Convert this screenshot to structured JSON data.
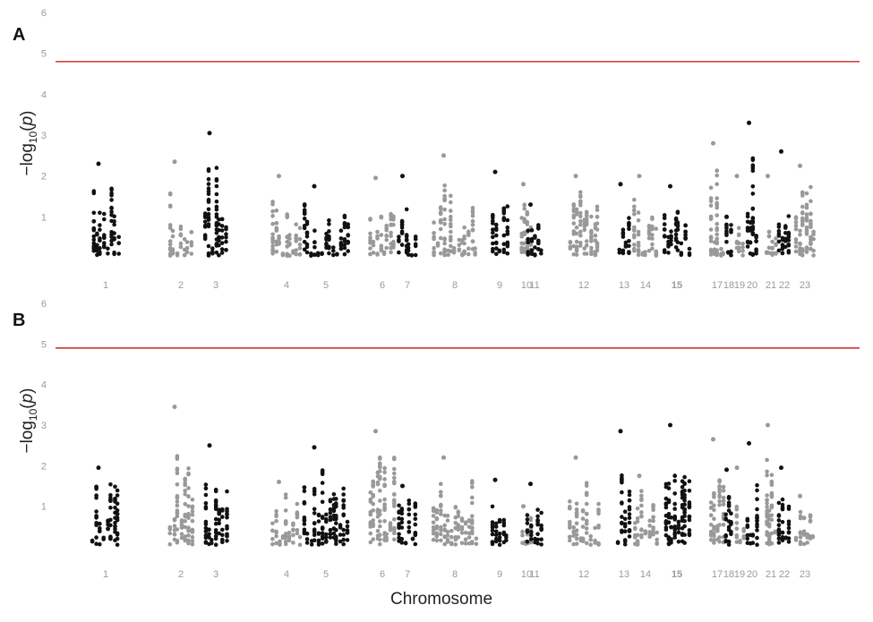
{
  "chart_data": [
    {
      "type": "scatter",
      "panel_label": "A",
      "ylabel_parts": [
        "−log",
        "10",
        "(",
        "p",
        ")"
      ],
      "xlabel": "",
      "ylim": [
        0,
        6
      ],
      "yticks": [
        1,
        2,
        3,
        4,
        5,
        6
      ],
      "threshold": 4.8,
      "threshold_color": "#cc2222",
      "series_colors": [
        "#111111",
        "#999999"
      ],
      "chromosome_labels": [
        "1",
        "2",
        "3",
        "4",
        "5",
        "6",
        "7",
        "8",
        "9",
        "10",
        "11",
        "12",
        "13",
        "14",
        "15",
        "17",
        "18",
        "19",
        "20",
        "21",
        "22",
        "23"
      ],
      "peaks": [
        {
          "chr": "1",
          "y": 2.3
        },
        {
          "chr": "2",
          "y": 2.35
        },
        {
          "chr": "3",
          "y": 3.05
        },
        {
          "chr": "4",
          "y": 2.0
        },
        {
          "chr": "5",
          "y": 1.75
        },
        {
          "chr": "6",
          "y": 1.95
        },
        {
          "chr": "7",
          "y": 2.0
        },
        {
          "chr": "8",
          "y": 2.5
        },
        {
          "chr": "9",
          "y": 2.1
        },
        {
          "chr": "10",
          "y": 1.8
        },
        {
          "chr": "11",
          "y": 1.3
        },
        {
          "chr": "12",
          "y": 2.0
        },
        {
          "chr": "13",
          "y": 1.8
        },
        {
          "chr": "14",
          "y": 2.0
        },
        {
          "chr": "15",
          "y": 1.75
        },
        {
          "chr": "17",
          "y": 2.8
        },
        {
          "chr": "18",
          "y": 1.0
        },
        {
          "chr": "19",
          "y": 2.0
        },
        {
          "chr": "20",
          "y": 3.3
        },
        {
          "chr": "21",
          "y": 2.0
        },
        {
          "chr": "22",
          "y": 2.6
        },
        {
          "chr": "23",
          "y": 2.25
        }
      ]
    },
    {
      "type": "scatter",
      "panel_label": "B",
      "ylabel_parts": [
        "−log",
        "10",
        "(",
        "p",
        ")"
      ],
      "xlabel": "Chromosome",
      "ylim": [
        0,
        6
      ],
      "yticks": [
        1,
        2,
        3,
        4,
        5,
        6
      ],
      "threshold": 4.9,
      "threshold_color": "#cc2222",
      "series_colors": [
        "#111111",
        "#999999"
      ],
      "chromosome_labels": [
        "1",
        "2",
        "3",
        "4",
        "5",
        "6",
        "7",
        "8",
        "9",
        "10",
        "11",
        "12",
        "13",
        "14",
        "15",
        "17",
        "18",
        "19",
        "20",
        "21",
        "22",
        "23"
      ],
      "peaks": [
        {
          "chr": "1",
          "y": 1.95
        },
        {
          "chr": "2",
          "y": 3.45
        },
        {
          "chr": "3",
          "y": 2.5
        },
        {
          "chr": "4",
          "y": 1.6
        },
        {
          "chr": "5",
          "y": 2.45
        },
        {
          "chr": "6",
          "y": 2.85
        },
        {
          "chr": "7",
          "y": 1.5
        },
        {
          "chr": "8",
          "y": 2.2
        },
        {
          "chr": "9",
          "y": 1.65
        },
        {
          "chr": "10",
          "y": 1.0
        },
        {
          "chr": "11",
          "y": 1.55
        },
        {
          "chr": "12",
          "y": 2.2
        },
        {
          "chr": "13",
          "y": 2.85
        },
        {
          "chr": "14",
          "y": 1.75
        },
        {
          "chr": "15",
          "y": 3.0
        },
        {
          "chr": "17",
          "y": 2.65
        },
        {
          "chr": "18",
          "y": 1.9
        },
        {
          "chr": "19",
          "y": 1.95
        },
        {
          "chr": "20",
          "y": 2.55
        },
        {
          "chr": "21",
          "y": 3.0
        },
        {
          "chr": "22",
          "y": 1.95
        },
        {
          "chr": "23",
          "y": 1.25
        }
      ]
    }
  ]
}
